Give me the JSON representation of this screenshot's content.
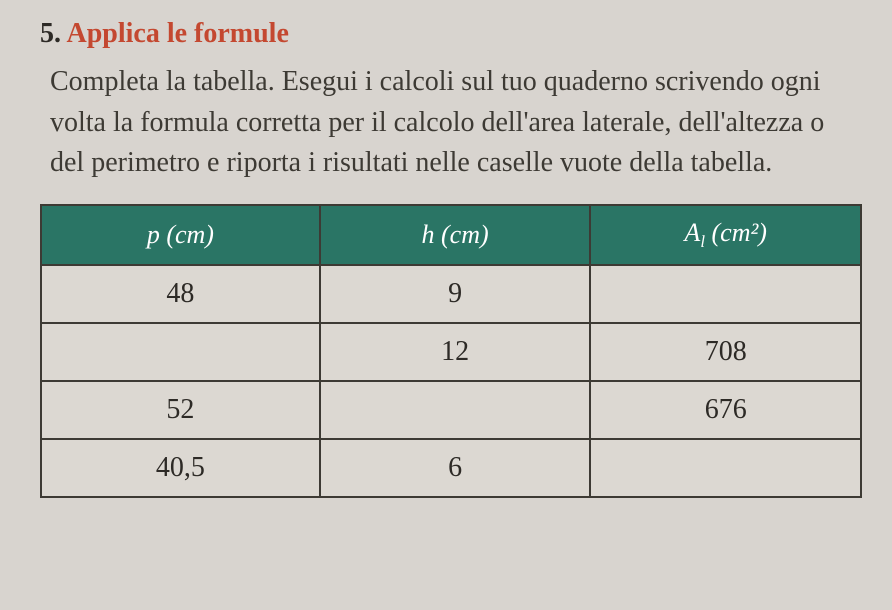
{
  "exercise": {
    "number": "5.",
    "title": "Applica le formule",
    "instruction": "Completa la tabella. Esegui i calcoli sul tuo quaderno scrivendo ogni volta la formula corretta per il calcolo dell'area laterale, dell'altezza o del perimetro e riporta i risultati nelle caselle vuote della tabella."
  },
  "table": {
    "columns": [
      {
        "label_var": "p",
        "label_unit": "(cm)"
      },
      {
        "label_var": "h",
        "label_unit": "(cm)"
      },
      {
        "label_var": "A",
        "label_sub": "l",
        "label_unit": "(cm²)"
      }
    ],
    "rows": [
      {
        "p": "48",
        "h": "9",
        "a": ""
      },
      {
        "p": "",
        "h": "12",
        "a": "708"
      },
      {
        "p": "52",
        "h": "",
        "a": "676"
      },
      {
        "p": "40,5",
        "h": "6",
        "a": ""
      }
    ],
    "header_bg_color": "#2a7565",
    "header_text_color": "#ffffff",
    "cell_bg_color": "#dcd8d2",
    "border_color": "#3d3a34",
    "title_color": "#c44830",
    "background_color": "#d8d4cf"
  }
}
